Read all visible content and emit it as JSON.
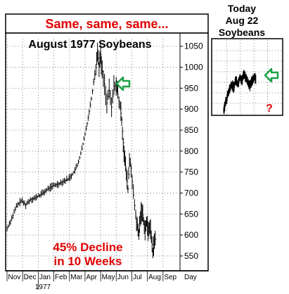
{
  "banner": "Same, same, same...",
  "main_title": "August 1977 Soybeans",
  "annotation": [
    "45% Decline",
    "in 10 Weeks"
  ],
  "question_mark": "?",
  "inset_title": [
    "Today",
    "Aug 22",
    "Soybeans"
  ],
  "colors": {
    "banner_text": "#e00000",
    "annotation_text": "#e00000",
    "arrow": "#1aa048",
    "bars": "#000000",
    "grid": "#555555"
  },
  "icons": [
    "left-arrow-icon",
    "left-arrow-icon"
  ],
  "chart_data": [
    {
      "type": "bar",
      "subtype": "ohlc",
      "title": "August 1977 Soybeans",
      "x_months": [
        "Nov",
        "Dec",
        "Jan",
        "Feb",
        "Mar",
        "Apr",
        "May",
        "Jun",
        "Jul",
        "Aug",
        "Sep"
      ],
      "x_year": "1977",
      "x_unit": "Day",
      "y_ticks": [
        550,
        600,
        650,
        700,
        750,
        800,
        850,
        900,
        950,
        1000,
        1050
      ],
      "ylim": [
        518,
        1068
      ],
      "grid": true,
      "y_axis_side": "right",
      "series": [
        {
          "values": [
            {
              "x": 0,
              "y": 615
            },
            {
              "x": 0.3,
              "y": 640
            },
            {
              "x": 0.6,
              "y": 668
            },
            {
              "x": 0.9,
              "y": 682
            },
            {
              "x": 1.2,
              "y": 672
            },
            {
              "x": 1.5,
              "y": 685
            },
            {
              "x": 1.8,
              "y": 688
            },
            {
              "x": 2.1,
              "y": 695
            },
            {
              "x": 2.4,
              "y": 703
            },
            {
              "x": 2.7,
              "y": 712
            },
            {
              "x": 3.0,
              "y": 718
            },
            {
              "x": 3.3,
              "y": 722
            },
            {
              "x": 3.6,
              "y": 728
            },
            {
              "x": 3.9,
              "y": 733
            },
            {
              "x": 4.2,
              "y": 745
            },
            {
              "x": 4.5,
              "y": 765
            },
            {
              "x": 4.8,
              "y": 805
            },
            {
              "x": 5.0,
              "y": 840
            },
            {
              "x": 5.2,
              "y": 880
            },
            {
              "x": 5.4,
              "y": 925
            },
            {
              "x": 5.55,
              "y": 965
            },
            {
              "x": 5.7,
              "y": 1000
            },
            {
              "x": 5.8,
              "y": 1040
            },
            {
              "x": 5.9,
              "y": 1003
            },
            {
              "x": 6.0,
              "y": 1030
            },
            {
              "x": 6.1,
              "y": 990
            },
            {
              "x": 6.25,
              "y": 960
            },
            {
              "x": 6.4,
              "y": 915
            },
            {
              "x": 6.55,
              "y": 945
            },
            {
              "x": 6.7,
              "y": 905
            },
            {
              "x": 6.85,
              "y": 955
            },
            {
              "x": 7.0,
              "y": 960
            },
            {
              "x": 7.1,
              "y": 935
            },
            {
              "x": 7.25,
              "y": 905
            },
            {
              "x": 7.35,
              "y": 875
            },
            {
              "x": 7.45,
              "y": 820
            },
            {
              "x": 7.55,
              "y": 780
            },
            {
              "x": 7.65,
              "y": 745
            },
            {
              "x": 7.75,
              "y": 710
            },
            {
              "x": 7.85,
              "y": 780
            },
            {
              "x": 7.95,
              "y": 760
            },
            {
              "x": 8.1,
              "y": 695
            },
            {
              "x": 8.25,
              "y": 645
            },
            {
              "x": 8.35,
              "y": 618
            },
            {
              "x": 8.45,
              "y": 600
            },
            {
              "x": 8.55,
              "y": 645
            },
            {
              "x": 8.65,
              "y": 660
            },
            {
              "x": 8.75,
              "y": 635
            },
            {
              "x": 8.85,
              "y": 615
            },
            {
              "x": 8.95,
              "y": 630
            },
            {
              "x": 9.05,
              "y": 608
            },
            {
              "x": 9.15,
              "y": 625
            },
            {
              "x": 9.25,
              "y": 595
            },
            {
              "x": 9.35,
              "y": 560
            },
            {
              "x": 9.45,
              "y": 585
            },
            {
              "x": 9.55,
              "y": 595
            }
          ]
        }
      ]
    },
    {
      "type": "bar",
      "subtype": "ohlc",
      "title": "Today Aug 22 Soybeans",
      "axes_labels": false,
      "grid": true,
      "series": [
        {
          "values": [
            {
              "x": 0,
              "y": 0.05
            },
            {
              "x": 0.05,
              "y": 0.22
            },
            {
              "x": 0.1,
              "y": 0.38
            },
            {
              "x": 0.15,
              "y": 0.52
            },
            {
              "x": 0.2,
              "y": 0.6
            },
            {
              "x": 0.25,
              "y": 0.55
            },
            {
              "x": 0.3,
              "y": 0.72
            },
            {
              "x": 0.35,
              "y": 0.62
            },
            {
              "x": 0.4,
              "y": 0.78
            },
            {
              "x": 0.45,
              "y": 0.7
            },
            {
              "x": 0.5,
              "y": 0.85
            },
            {
              "x": 0.55,
              "y": 0.75
            },
            {
              "x": 0.6,
              "y": 0.66
            },
            {
              "x": 0.65,
              "y": 0.58
            },
            {
              "x": 0.7,
              "y": 0.7
            },
            {
              "x": 0.75,
              "y": 0.78
            },
            {
              "x": 0.8,
              "y": 0.74
            }
          ]
        }
      ]
    }
  ]
}
